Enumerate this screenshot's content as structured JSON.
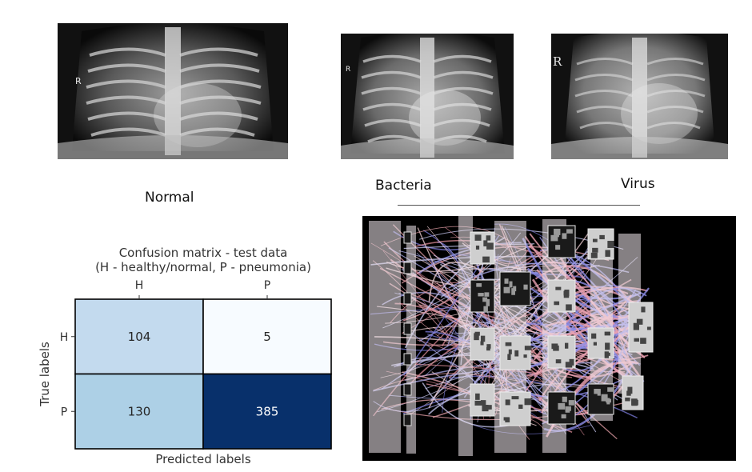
{
  "panels": {
    "normal": {
      "caption": "Normal",
      "marker": "R"
    },
    "bacteria": {
      "caption": "Bacteria",
      "marker": "R"
    },
    "virus": {
      "caption": "Virus",
      "marker": "R"
    }
  },
  "chart_data": {
    "type": "heatmap",
    "title": "Confusion matrix - test data",
    "subtitle": "(H - healthy/normal, P - pneumonia)",
    "xlabel": "Predicted labels",
    "ylabel": "True labels",
    "x_categories": [
      "H",
      "P"
    ],
    "y_categories": [
      "H",
      "P"
    ],
    "values": [
      [
        104,
        5
      ],
      [
        130,
        385
      ]
    ],
    "colormap": "Blues",
    "vmin": 5,
    "vmax": 385,
    "colors": {
      "low": "#f7fbff",
      "high": "#08306b",
      "text_dark": "#262626",
      "text_light": "#ffffff",
      "grid": "#000000"
    }
  },
  "network": {
    "background": "#000000"
  }
}
